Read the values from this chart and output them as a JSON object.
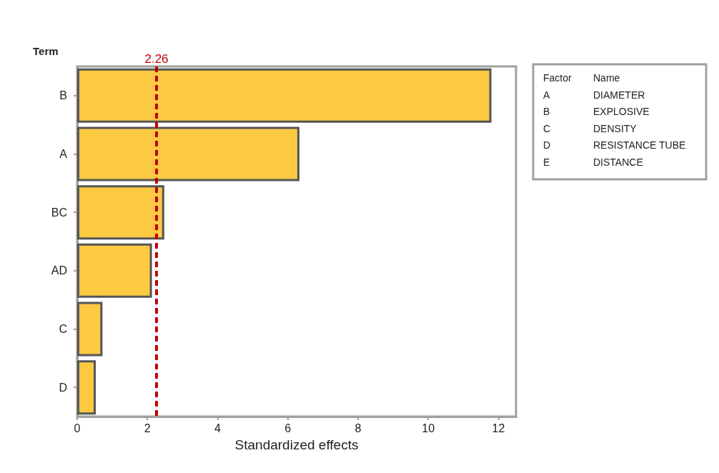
{
  "chart_data": {
    "type": "bar",
    "orientation": "horizontal",
    "categories": [
      "B",
      "A",
      "BC",
      "AD",
      "C",
      "D"
    ],
    "values": [
      11.8,
      6.33,
      2.48,
      2.13,
      0.72,
      0.53
    ],
    "color": "#fcc943",
    "xlim": [
      0,
      12.5
    ],
    "xticks": [
      0,
      2,
      4,
      6,
      8,
      10,
      12
    ],
    "xlabel": "Standardized effects",
    "ylabel": "Term",
    "ref_lines": [
      {
        "axis": "x",
        "value": 2.26,
        "label": "2.26",
        "color": "#c00000",
        "line_style": "dashed"
      }
    ],
    "annotations": [
      "Factor",
      "Name",
      "A",
      "DIAMETER",
      "B",
      "EXPLOSIVE",
      "C",
      "DENSITY",
      "D",
      "RESISTANCE TUBE",
      "E",
      "DISTANCE"
    ],
    "data_labels": false
  }
}
